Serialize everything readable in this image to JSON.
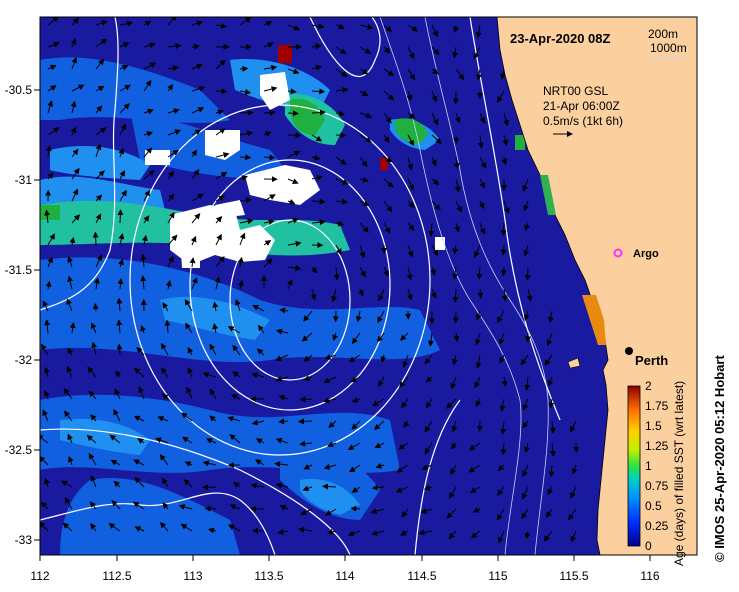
{
  "map": {
    "date_label": "23-Apr-2020 08Z",
    "depth_legend": [
      "200m",
      "1000m"
    ],
    "current_info": [
      "NRT00 GSL",
      "21-Apr 06:00Z",
      "0.5m/s (1kt 6h)"
    ],
    "places": {
      "argo": "Argo",
      "perth": "Perth"
    },
    "x_ticks": [
      "112",
      "112.5",
      "113",
      "113.5",
      "114",
      "114.5",
      "115",
      "115.5",
      "116"
    ],
    "y_ticks": [
      "-30.5",
      "-31",
      "-31.5",
      "-32",
      "-32.5",
      "-33"
    ],
    "credit": "© IMOS 25-Apr-2020 05:12 Hobart",
    "colors": {
      "ocean_deep": "#1a1aa0",
      "land": "#fccf9e",
      "contour": "#ffffff",
      "argo": "#ff33ff"
    }
  },
  "colorbar": {
    "title": "Age (days) of filled SST (wrt latest)",
    "ticks": [
      "2",
      "1.75",
      "1.5",
      "1.25",
      "1",
      "0.75",
      "0.5",
      "0.25",
      "0"
    ]
  }
}
